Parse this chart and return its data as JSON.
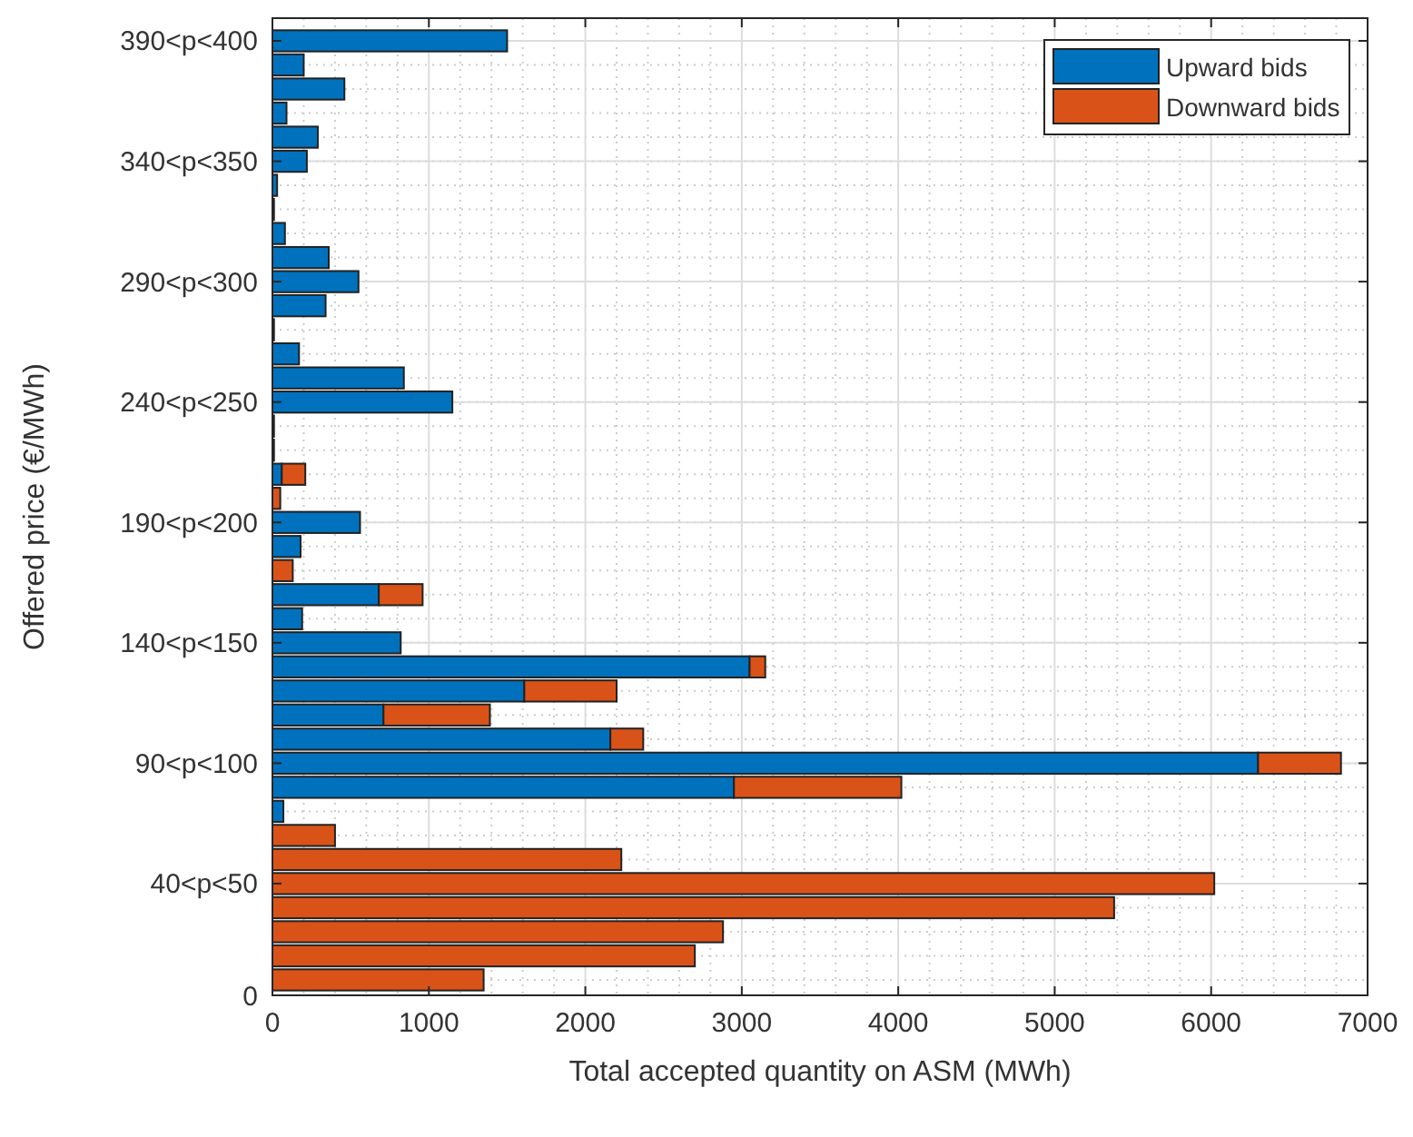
{
  "chart_data": {
    "type": "bar",
    "orientation": "horizontal",
    "stacked": true,
    "xlabel": "Total accepted quantity on ASM (MWh)",
    "ylabel": "Offered price (€/MWh)",
    "categories": [
      "390<p<400",
      null,
      null,
      null,
      null,
      "340<p<350",
      null,
      null,
      null,
      null,
      "290<p<300",
      null,
      null,
      null,
      null,
      "240<p<250",
      null,
      null,
      null,
      null,
      "190<p<200",
      null,
      null,
      null,
      null,
      "140<p<150",
      null,
      null,
      null,
      null,
      "90<p<100",
      null,
      null,
      null,
      null,
      "40<p<50",
      null,
      null,
      null,
      null
    ],
    "series": [
      {
        "name": "Upward bids",
        "color": "#0072bd",
        "values": [
          1500,
          200,
          460,
          90,
          290,
          220,
          30,
          10,
          80,
          360,
          550,
          340,
          10,
          170,
          840,
          1150,
          10,
          10,
          60,
          0,
          560,
          180,
          null,
          680,
          190,
          820,
          3050,
          1610,
          710,
          2160,
          6300,
          2950,
          70,
          0,
          0,
          0,
          0,
          0,
          0,
          0
        ]
      },
      {
        "name": "Downward bids",
        "color": "#d95319",
        "values": [
          0,
          0,
          0,
          0,
          0,
          0,
          0,
          0,
          0,
          0,
          0,
          0,
          0,
          0,
          0,
          0,
          0,
          0,
          150,
          50,
          0,
          0,
          130,
          280,
          0,
          0,
          100,
          590,
          680,
          210,
          530,
          1070,
          0,
          400,
          2230,
          6020,
          5380,
          2880,
          2700,
          1350
        ]
      }
    ],
    "xlim": [
      0,
      7000
    ],
    "xticks": [
      0,
      1000,
      2000,
      3000,
      4000,
      5000,
      6000,
      7000
    ],
    "annotations": [
      "0"
    ],
    "grid": true,
    "legend": "top right"
  }
}
